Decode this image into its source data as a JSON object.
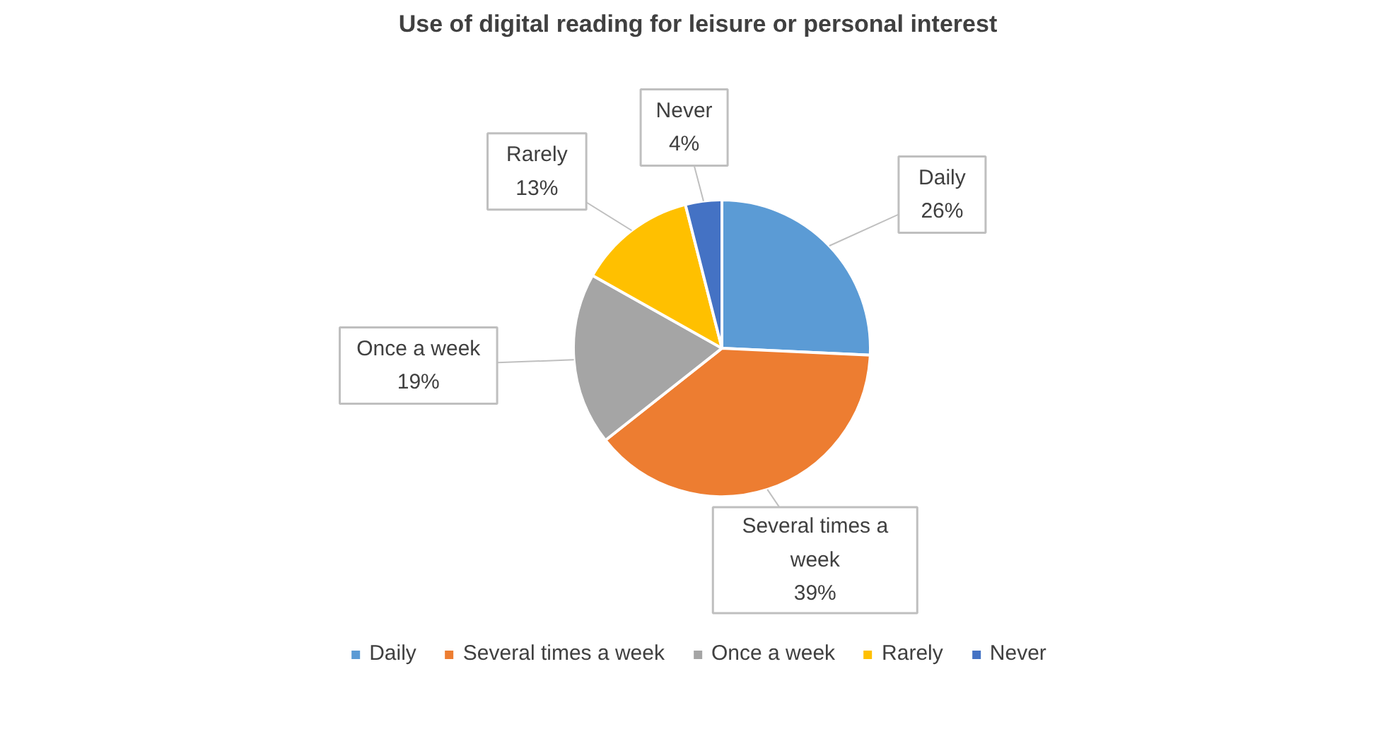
{
  "chart_data": {
    "type": "pie",
    "title": "Use of digital reading for leisure or personal interest",
    "categories": [
      "Daily",
      "Several times a week",
      "Once a week",
      "Rarely",
      "Never"
    ],
    "values": [
      26,
      39,
      19,
      13,
      4
    ],
    "value_labels": [
      "26%",
      "39%",
      "19%",
      "13%",
      "4%"
    ],
    "colors": [
      "#5b9bd5",
      "#ed7d31",
      "#a5a5a5",
      "#ffc000",
      "#4472c4"
    ],
    "legend": "bottom"
  }
}
